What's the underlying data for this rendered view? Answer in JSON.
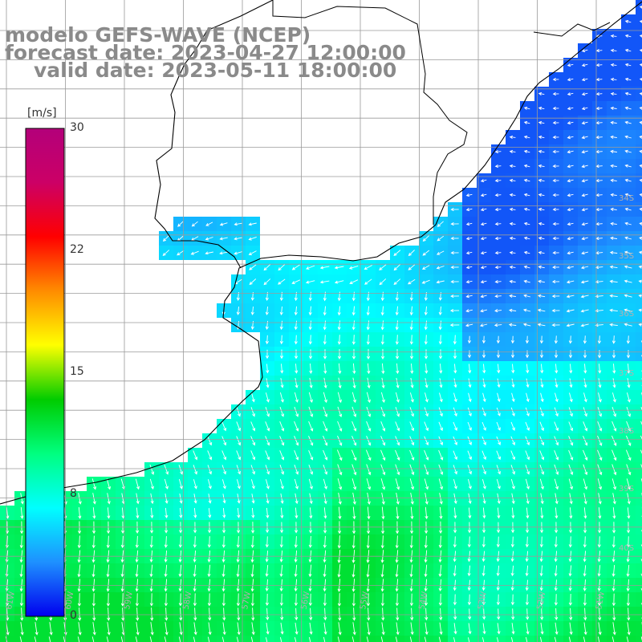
{
  "title": {
    "model": "modelo GEFS-WAVE (NCEP)",
    "forecast": "forecast date: 2023-04-27 12:00:00",
    "valid": "valid date: 2023-05-11 18:00:00"
  },
  "colorbar": {
    "unit": "[m/s]",
    "ticks": [
      "30",
      "22",
      "15",
      "8",
      "0"
    ],
    "range": [
      0,
      30
    ],
    "stops": [
      "#0000ee",
      "#1e90ff",
      "#00ffff",
      "#00ff80",
      "#00cc00",
      "#ffff00",
      "#ff8c00",
      "#ff0000",
      "#cc0066",
      "#b3007a"
    ]
  },
  "latitude_labels": [
    "34S",
    "35S",
    "36S",
    "37S",
    "38S",
    "39S",
    "40S"
  ],
  "longitude_labels": [
    "61W",
    "60W",
    "59W",
    "58W",
    "57W",
    "56W",
    "55W",
    "54W",
    "53W",
    "52W",
    "51W"
  ],
  "colors": {
    "land": "#ffffff",
    "grid": "#9a9a9a",
    "coast": "#000000",
    "arrows": "#ffffff",
    "title": "#8a8a8a"
  },
  "field": {
    "variable": "wind",
    "description_values": "speed 0-30 m/s, mostly 4-10 m/s, northerly-to-southerly flow offshore"
  }
}
